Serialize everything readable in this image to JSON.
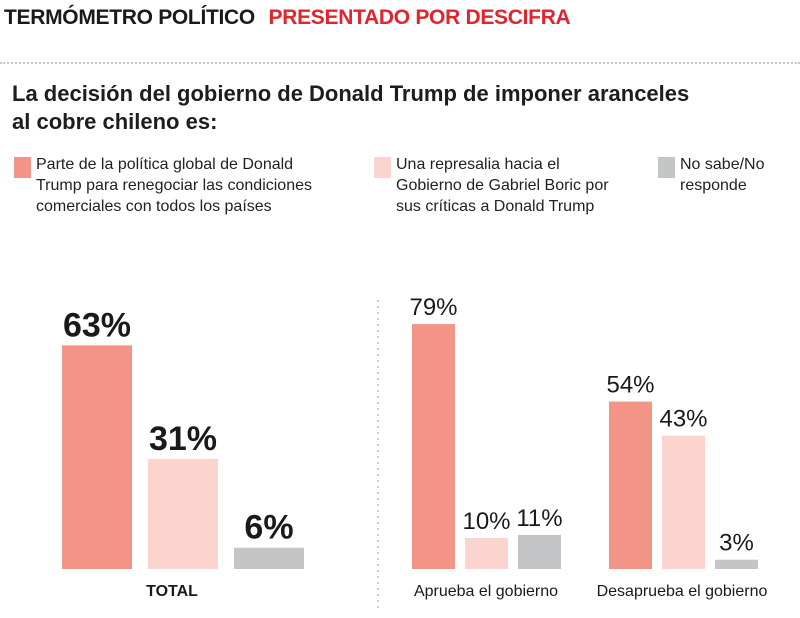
{
  "header": {
    "kicker": "TERMÓMETRO POLÍTICO",
    "sponsor": "PRESENTADO POR DESCIFRA"
  },
  "colors": {
    "series1": "#f29486",
    "series2": "#fad4cd",
    "series3": "#c4c5c6",
    "sponsor": "#e0252e"
  },
  "chart_data": {
    "type": "bar",
    "title": "La decisión del gobierno de Donald Trump de imponer aranceles al cobre chileno es:",
    "title_lines": [
      "La decisión del gobierno de Donald Trump de imponer aranceles",
      "al cobre chileno es:"
    ],
    "legend_position": "top",
    "grid": false,
    "unit": "%",
    "series": [
      {
        "name": "Parte de la política global de Donald Trump para renegociar las condiciones comerciales con todos los países",
        "name_lines": [
          "Parte de la política global de Donald",
          "Trump para renegociar las condiciones",
          "comerciales con todos los países"
        ],
        "color": "#f29486"
      },
      {
        "name": "Una represalia hacia el Gobierno de Gabriel Boric por sus críticas a Donald Trump",
        "name_lines": [
          "Una represalia hacia el",
          "Gobierno de Gabriel Boric por",
          "sus críticas a Donald Trump"
        ],
        "color": "#fad4cd"
      },
      {
        "name": "No sabe/No responde",
        "name_lines": [
          "No sabe/No",
          "responde"
        ],
        "color": "#c4c5c6"
      }
    ],
    "groups": [
      {
        "label": "TOTAL",
        "values": [
          63,
          31,
          6
        ],
        "value_labels": [
          "63%",
          "31%",
          "6%"
        ]
      },
      {
        "label": "Aprueba el gobierno",
        "values": [
          79,
          10,
          11
        ],
        "value_labels": [
          "79%",
          "10%",
          "11%"
        ]
      },
      {
        "label": "Desaprueba el gobierno",
        "values": [
          54,
          43,
          3
        ],
        "value_labels": [
          "54%",
          "43%",
          "3%"
        ]
      }
    ]
  }
}
